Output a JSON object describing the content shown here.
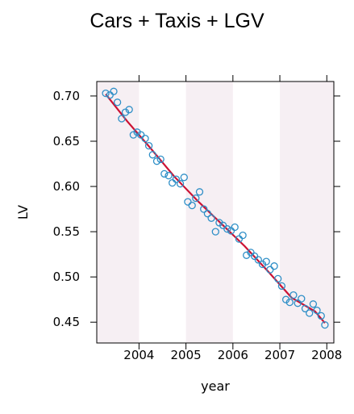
{
  "chart_data": {
    "type": "scatter",
    "title": "Cars + Taxis + LGV",
    "xlabel": "year",
    "ylabel": "LV",
    "xlim": [
      2003.1,
      2008.15
    ],
    "ylim": [
      0.427,
      0.716
    ],
    "x_ticks": [
      2004,
      2005,
      2006,
      2007,
      2008
    ],
    "y_ticks": [
      0.45,
      0.5,
      0.55,
      0.6,
      0.65,
      0.7
    ],
    "x_tick_labels": [
      "2004",
      "2005",
      "2006",
      "2007",
      "2008"
    ],
    "y_tick_labels": [
      "0.45",
      "0.50",
      "0.55",
      "0.60",
      "0.65",
      "0.70"
    ],
    "grid": false,
    "background_bands": "alternating shaded year bands",
    "series": [
      {
        "kind": "points",
        "color": "#2f8fc7",
        "x": [
          2003.29,
          2003.38,
          2003.46,
          2003.54,
          2003.63,
          2003.71,
          2003.79,
          2003.88,
          2003.96,
          2004.04,
          2004.13,
          2004.21,
          2004.29,
          2004.38,
          2004.46,
          2004.54,
          2004.63,
          2004.71,
          2004.79,
          2004.88,
          2004.96,
          2005.04,
          2005.13,
          2005.21,
          2005.29,
          2005.38,
          2005.46,
          2005.54,
          2005.63,
          2005.71,
          2005.79,
          2005.88,
          2005.96,
          2006.04,
          2006.13,
          2006.21,
          2006.29,
          2006.38,
          2006.46,
          2006.54,
          2006.63,
          2006.71,
          2006.79,
          2006.88,
          2006.96,
          2007.04,
          2007.13,
          2007.21,
          2007.29,
          2007.38,
          2007.46,
          2007.54,
          2007.63,
          2007.71,
          2007.79,
          2007.88,
          2007.96
        ],
        "y": [
          0.703,
          0.701,
          0.705,
          0.693,
          0.675,
          0.682,
          0.685,
          0.657,
          0.66,
          0.657,
          0.653,
          0.645,
          0.635,
          0.628,
          0.63,
          0.614,
          0.612,
          0.604,
          0.608,
          0.603,
          0.61,
          0.583,
          0.579,
          0.587,
          0.594,
          0.575,
          0.57,
          0.565,
          0.55,
          0.56,
          0.557,
          0.553,
          0.551,
          0.555,
          0.542,
          0.546,
          0.524,
          0.527,
          0.523,
          0.519,
          0.514,
          0.517,
          0.508,
          0.512,
          0.498,
          0.49,
          0.475,
          0.472,
          0.48,
          0.471,
          0.476,
          0.465,
          0.46,
          0.47,
          0.463,
          0.457,
          0.447
        ]
      },
      {
        "kind": "trend-line",
        "color": "#cc1133",
        "x": [
          2003.29,
          2003.75,
          2004.25,
          2004.75,
          2005.25,
          2005.75,
          2006.25,
          2006.75,
          2007.25,
          2007.75,
          2007.96
        ],
        "y": [
          0.702,
          0.672,
          0.642,
          0.611,
          0.584,
          0.559,
          0.534,
          0.506,
          0.477,
          0.462,
          0.449
        ]
      }
    ]
  }
}
